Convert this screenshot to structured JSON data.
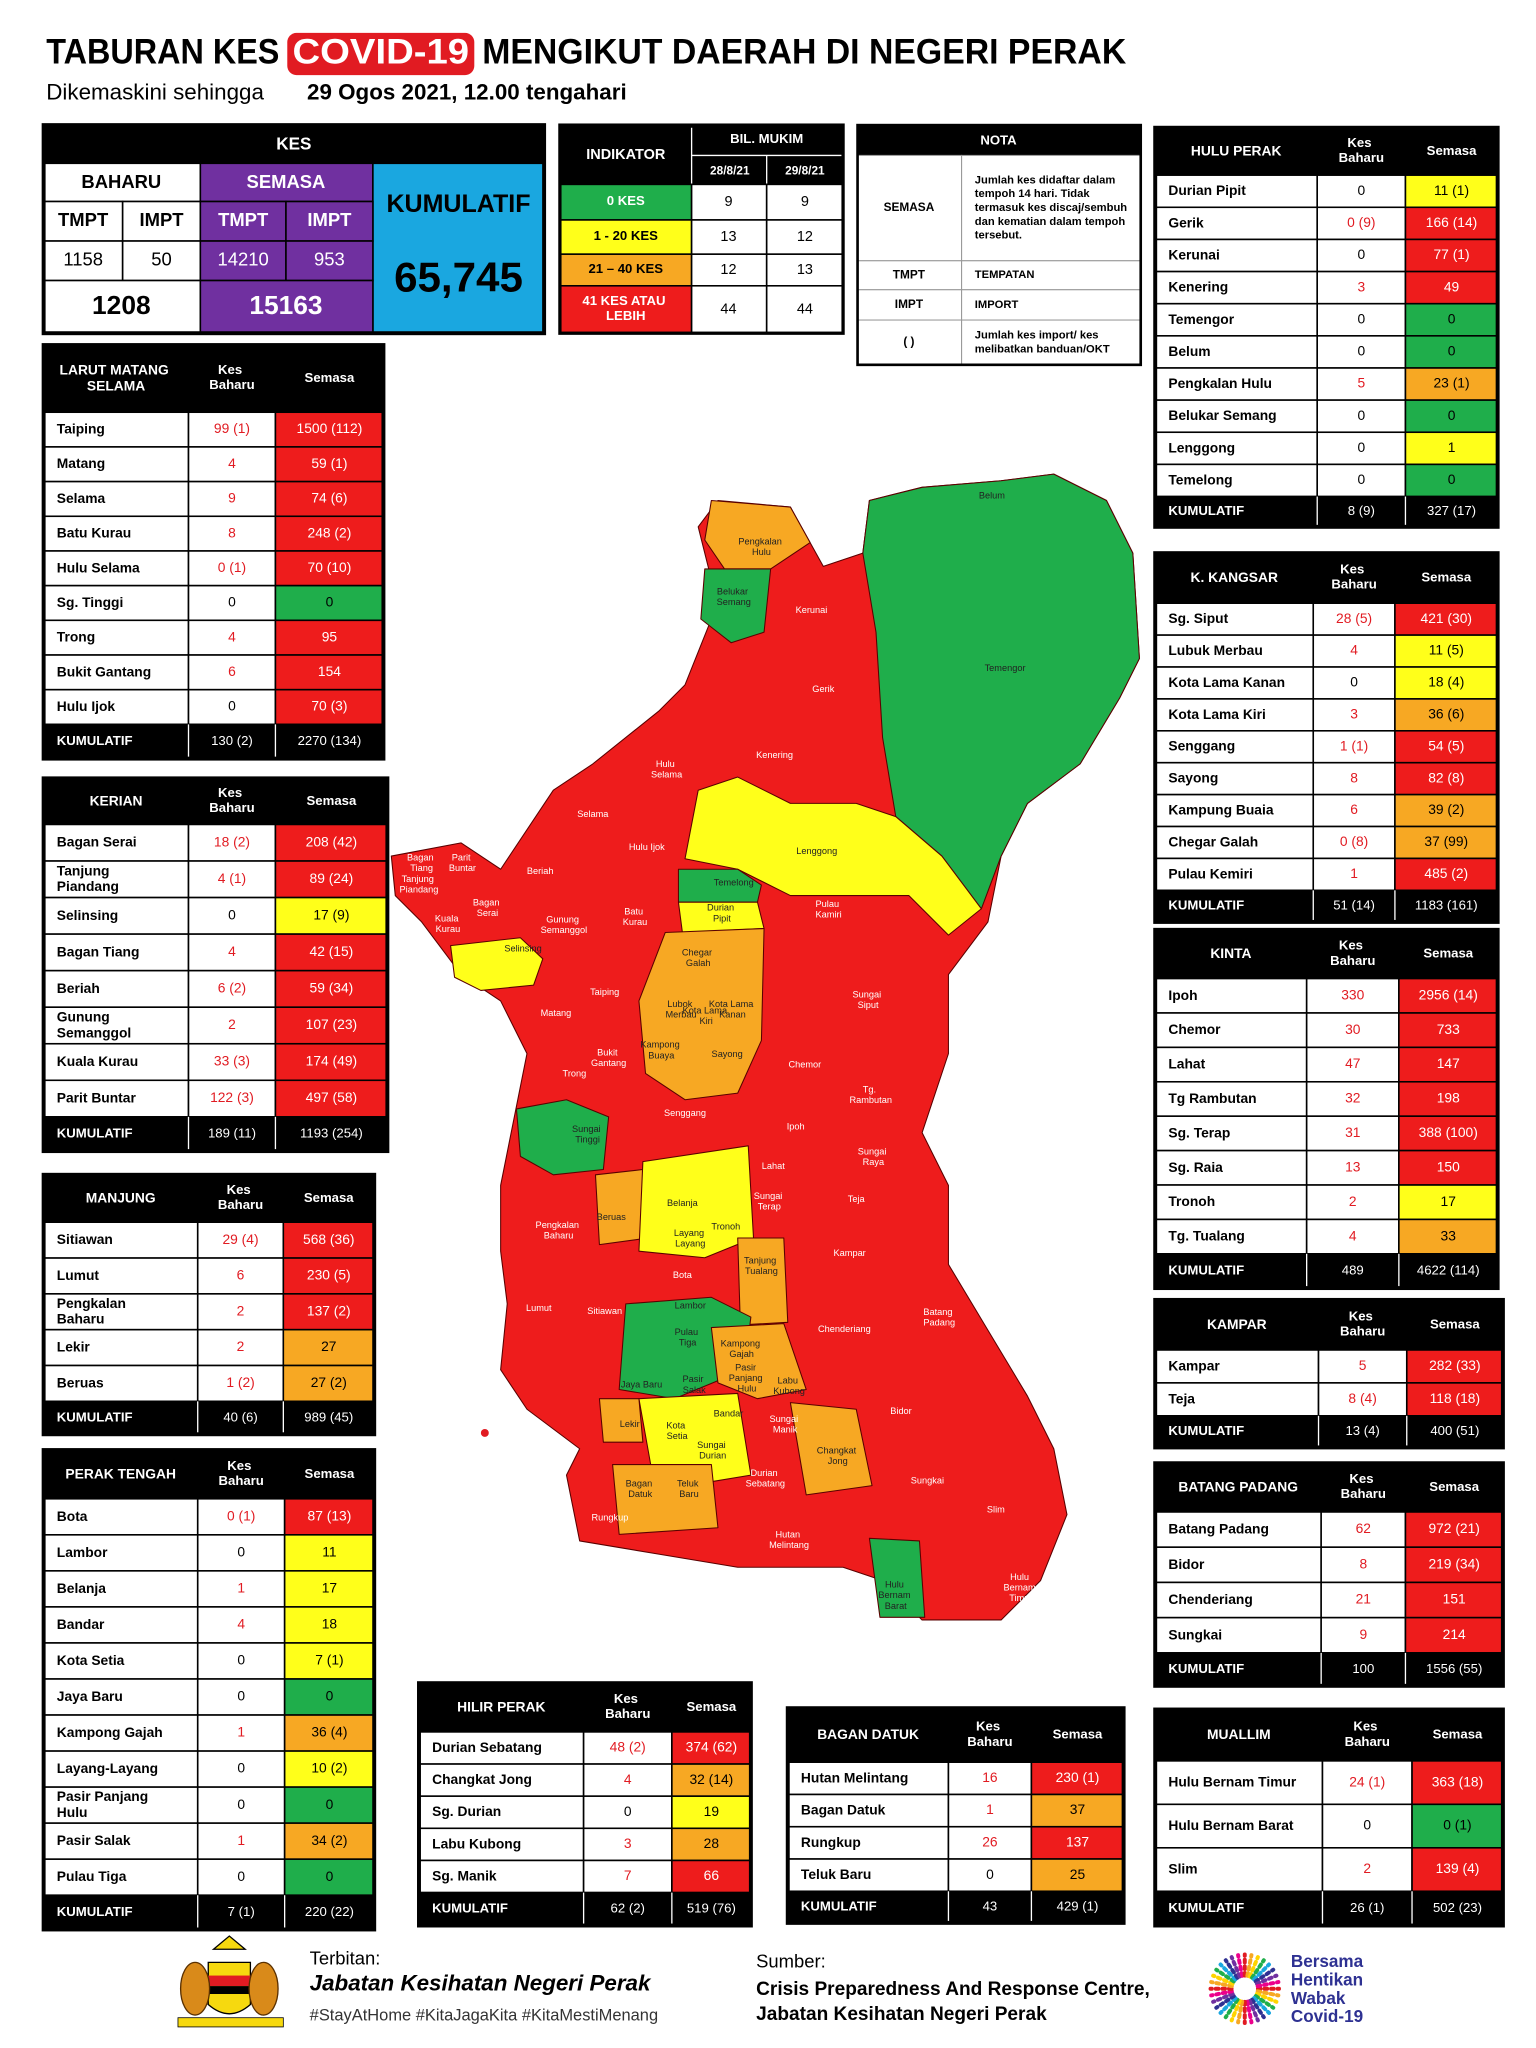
{
  "header": {
    "title_start": "TABURAN KES",
    "title_highlight": "COVID-19",
    "title_end": "MENGIKUT DAERAH DI NEGERI PERAK",
    "subtitle_start": "Dikemaskini sehingga",
    "subtitle_date": "29 Ogos 2021, 12.00 tengahari"
  },
  "kes": {
    "title": "KES",
    "baharu": "BAHARU",
    "semasa": "SEMASA",
    "kumulatif": "KUMULATIF",
    "sub": [
      "TMPT",
      "IMPT",
      "TMPT",
      "IMPT"
    ],
    "values": [
      "1158",
      "50",
      "14210",
      "953"
    ],
    "totals": [
      "1208",
      "15163"
    ],
    "kumulatif_value": "65,745"
  },
  "indikator": {
    "title": "INDIKATOR",
    "group": "BIL. MUKIM",
    "dates": [
      "28/8/21",
      "29/8/21"
    ],
    "rows": [
      [
        "0 KES",
        "9",
        "9"
      ],
      [
        "1 - 20 KES",
        "13",
        "12"
      ],
      [
        "21 – 40 KES",
        "12",
        "13"
      ],
      [
        "41 KES ATAU LEBIH",
        "44",
        "44"
      ]
    ]
  },
  "nota": {
    "title": "NOTA",
    "rows": [
      [
        "SEMASA",
        "Jumlah kes didaftar dalam tempoh 14 hari. Tidak termasuk kes discaj/sembuh dan kematian dalam tempoh tersebut."
      ],
      [
        "TMPT",
        "TEMPATAN"
      ],
      [
        "IMPT",
        "IMPORT"
      ],
      [
        "( )",
        "Jumlah kes import/ kes melibatkan banduan/OKT"
      ]
    ]
  },
  "districts": [
    {
      "name": "LARUT MATANG SELAMA",
      "col_baharu": "Kes Baharu",
      "col_semasa": "Semasa",
      "rows": [
        [
          "Taiping",
          "99 (1)",
          "1500 (112)"
        ],
        [
          "Matang",
          "4",
          "59 (1)"
        ],
        [
          "Selama",
          "9",
          "74 (6)"
        ],
        [
          "Batu Kurau",
          "8",
          "248 (2)"
        ],
        [
          "Hulu Selama",
          "0 (1)",
          "70 (10)"
        ],
        [
          "Sg. Tinggi",
          "0",
          "0"
        ],
        [
          "Trong",
          "4",
          "95"
        ],
        [
          "Bukit Gantang",
          "6",
          "154"
        ],
        [
          "Hulu Ijok",
          "0",
          "70 (3)"
        ]
      ],
      "total_label": "KUMULATIF",
      "total": [
        "130 (2)",
        "2270 (134)"
      ]
    },
    {
      "name": "KERIAN",
      "col_baharu": "Kes Baharu",
      "col_semasa": "Semasa",
      "rows": [
        [
          "Bagan Serai",
          "18 (2)",
          "208 (42)"
        ],
        [
          "Tanjung Piandang",
          "4 (1)",
          "89 (24)"
        ],
        [
          "Selinsing",
          "0",
          "17 (9)"
        ],
        [
          "Bagan Tiang",
          "4",
          "42 (15)"
        ],
        [
          "Beriah",
          "6 (2)",
          "59 (34)"
        ],
        [
          "Gunung Semanggol",
          "2",
          "107 (23)"
        ],
        [
          "Kuala Kurau",
          "33 (3)",
          "174 (49)"
        ],
        [
          "Parit Buntar",
          "122 (3)",
          "497 (58)"
        ]
      ],
      "total_label": "KUMULATIF",
      "total": [
        "189 (11)",
        "1193 (254)"
      ]
    },
    {
      "name": "MANJUNG",
      "col_baharu": "Kes Baharu",
      "col_semasa": "Semasa",
      "rows": [
        [
          "Sitiawan",
          "29 (4)",
          "568 (36)"
        ],
        [
          "Lumut",
          "6",
          "230 (5)"
        ],
        [
          "Pengkalan Baharu",
          "2",
          "137 (2)"
        ],
        [
          "Lekir",
          "2",
          "27"
        ],
        [
          "Beruas",
          "1 (2)",
          "27 (2)"
        ]
      ],
      "total_label": "KUMULATIF",
      "total": [
        "40 (6)",
        "989 (45)"
      ]
    },
    {
      "name": "PERAK TENGAH",
      "col_baharu": "Kes Baharu",
      "col_semasa": "Semasa",
      "rows": [
        [
          "Bota",
          "0 (1)",
          "87 (13)"
        ],
        [
          "Lambor",
          "0",
          "11"
        ],
        [
          "Belanja",
          "1",
          "17"
        ],
        [
          "Bandar",
          "4",
          "18"
        ],
        [
          "Kota Setia",
          "0",
          "7 (1)"
        ],
        [
          "Jaya Baru",
          "0",
          "0"
        ],
        [
          "Kampong Gajah",
          "1",
          "36 (4)"
        ],
        [
          "Layang-Layang",
          "0",
          "10 (2)"
        ],
        [
          "Pasir Panjang Hulu",
          "0",
          "0"
        ],
        [
          "Pasir Salak",
          "1",
          "34 (2)"
        ],
        [
          "Pulau Tiga",
          "0",
          "0"
        ]
      ],
      "total_label": "KUMULATIF",
      "total": [
        "7 (1)",
        "220 (22)"
      ]
    },
    {
      "name": "HULU PERAK",
      "col_baharu": "Kes Baharu",
      "col_semasa": "Semasa",
      "rows": [
        [
          "Durian Pipit",
          "0",
          "11 (1)"
        ],
        [
          "Gerik",
          "0 (9)",
          "166 (14)"
        ],
        [
          "Kerunai",
          "0",
          "77 (1)"
        ],
        [
          "Kenering",
          "3",
          "49"
        ],
        [
          "Temengor",
          "0",
          "0"
        ],
        [
          "Belum",
          "0",
          "0"
        ],
        [
          "Pengkalan Hulu",
          "5",
          "23 (1)"
        ],
        [
          "Belukar Semang",
          "0",
          "0"
        ],
        [
          "Lenggong",
          "0",
          "1"
        ],
        [
          "Temelong",
          "0",
          "0"
        ]
      ],
      "total_label": "KUMULATIF",
      "total": [
        "8 (9)",
        "327 (17)"
      ]
    },
    {
      "name": "K. KANGSAR",
      "col_baharu": "Kes Baharu",
      "col_semasa": "Semasa",
      "rows": [
        [
          "Sg. Siput",
          "28 (5)",
          "421 (30)"
        ],
        [
          "Lubuk Merbau",
          "4",
          "11 (5)"
        ],
        [
          "Kota Lama Kanan",
          "0",
          "18 (4)"
        ],
        [
          "Kota Lama Kiri",
          "3",
          "36 (6)"
        ],
        [
          "Senggang",
          "1 (1)",
          "54 (5)"
        ],
        [
          "Sayong",
          "8",
          "82 (8)"
        ],
        [
          "Kampung Buaia",
          "6",
          "39 (2)"
        ],
        [
          "Chegar Galah",
          "0 (8)",
          "37 (99)"
        ],
        [
          "Pulau Kemiri",
          "1",
          "485 (2)"
        ]
      ],
      "total_label": "KUMULATIF",
      "total": [
        "51 (14)",
        "1183 (161)"
      ]
    },
    {
      "name": "KINTA",
      "col_baharu": "Kes Baharu",
      "col_semasa": "Semasa",
      "rows": [
        [
          "Ipoh",
          "330",
          "2956 (14)"
        ],
        [
          "Chemor",
          "30",
          "733"
        ],
        [
          "Lahat",
          "47",
          "147"
        ],
        [
          "Tg Rambutan",
          "32",
          "198"
        ],
        [
          "Sg. Terap",
          "31",
          "388 (100)"
        ],
        [
          "Sg. Raia",
          "13",
          "150"
        ],
        [
          "Tronoh",
          "2",
          "17"
        ],
        [
          "Tg. Tualang",
          "4",
          "33"
        ]
      ],
      "total_label": "KUMULATIF",
      "total": [
        "489",
        "4622 (114)"
      ]
    },
    {
      "name": "KAMPAR",
      "col_baharu": "Kes Baharu",
      "col_semasa": "Semasa",
      "rows": [
        [
          "Kampar",
          "5",
          "282 (33)"
        ],
        [
          "Teja",
          "8 (4)",
          "118 (18)"
        ]
      ],
      "total_label": "KUMULATIF",
      "total": [
        "13 (4)",
        "400 (51)"
      ]
    },
    {
      "name": "BATANG PADANG",
      "col_baharu": "Kes Baharu",
      "col_semasa": "Semasa",
      "rows": [
        [
          "Batang Padang",
          "62",
          "972 (21)"
        ],
        [
          "Bidor",
          "8",
          "219 (34)"
        ],
        [
          "Chenderiang",
          "21",
          "151"
        ],
        [
          "Sungkai",
          "9",
          "214"
        ]
      ],
      "total_label": "KUMULATIF",
      "total": [
        "100",
        "1556 (55)"
      ]
    },
    {
      "name": "MUALLIM",
      "col_baharu": "Kes Baharu",
      "col_semasa": "Semasa",
      "rows": [
        [
          "Hulu Bernam Timur",
          "24 (1)",
          "363 (18)"
        ],
        [
          "Hulu Bernam Barat",
          "0",
          "0 (1)"
        ],
        [
          "Slim",
          "2",
          "139 (4)"
        ]
      ],
      "total_label": "KUMULATIF",
      "total": [
        "26 (1)",
        "502 (23)"
      ]
    },
    {
      "name": "HILIR PERAK",
      "col_baharu": "Kes Baharu",
      "col_semasa": "Semasa",
      "rows": [
        [
          "Durian Sebatang",
          "48 (2)",
          "374 (62)"
        ],
        [
          "Changkat Jong",
          "4",
          "32 (14)"
        ],
        [
          "Sg. Durian",
          "0",
          "19"
        ],
        [
          "Labu Kubong",
          "3",
          "28"
        ],
        [
          "Sg. Manik",
          "7",
          "66"
        ]
      ],
      "total_label": "KUMULATIF",
      "total": [
        "62 (2)",
        "519 (76)"
      ]
    },
    {
      "name": "BAGAN DATUK",
      "col_baharu": "Kes Baharu",
      "col_semasa": "Semasa",
      "rows": [
        [
          "Hutan Melintang",
          "16",
          "230 (1)"
        ],
        [
          "Bagan Datuk",
          "1",
          "37"
        ],
        [
          "Rungkup",
          "26",
          "137"
        ],
        [
          "Teluk Baru",
          "0",
          "25"
        ]
      ],
      "total_label": "KUMULATIF",
      "total": [
        "43",
        "429 (1)"
      ]
    }
  ],
  "map": {
    "labels": [
      "Belum",
      "Temengor",
      "Pengkalan Hulu",
      "Belukar Semang",
      "Kerunai",
      "Gerik",
      "Kenering",
      "Hulu Selama",
      "Selama",
      "Hulu Ijok",
      "Lenggong",
      "Temelong",
      "Durian Pipit",
      "Pulau Kamiri",
      "Bagan Tiang",
      "Parit Buntar",
      "Tanjung Piandang",
      "Beriah",
      "Bagan Serai",
      "Kuala Kurau",
      "Gunung Semanggol",
      "Batu Kurau",
      "Selinsing",
      "Chegar Galah",
      "Lubok Merbau",
      "Kota Lama Kiri",
      "Kota Lama Kanan",
      "Taiping",
      "Sungai Siput",
      "Matang",
      "Kampong Buaya",
      "Bukit Gantang",
      "Sayong",
      "Chemor",
      "Trong",
      "Tg. Rambutan",
      "Senggang",
      "Sungai Tinggi",
      "Ipoh",
      "Sungai Raya",
      "Lahat",
      "Belanja",
      "Sungai Terap",
      "Teja",
      "Beruas",
      "Pengkalan Baharu",
      "Tronoh",
      "Layang Layang",
      "Kampar",
      "Tanjung Tualang",
      "Bota",
      "Lumut",
      "Lambor",
      "Sitiawan",
      "Batang Padang",
      "Chenderiang",
      "Pulau Tiga",
      "Kampong Gajah",
      "Pasir Panjang Hulu",
      "Jaya Baru",
      "Pasir Salak",
      "Labu Kubong",
      "Bandar",
      "Bidor",
      "Sungai Manik",
      "Lekir",
      "Kota Setia",
      "Sungai Durian",
      "Changkat Jong",
      "Durian Sebatang",
      "Sungkai",
      "Bagan Datuk",
      "Teluk Baru",
      "Rungkup",
      "Slim",
      "Hutan Melintang",
      "Hulu Bernam Barat",
      "Hulu Bernam Timur"
    ]
  },
  "footer": {
    "published_label": "Terbitan:",
    "publisher": "Jabatan Kesihatan Negeri Perak",
    "hashtags": "#StayAtHome #KitaJagaKita #KitaMestiMenang",
    "source_label": "Sumber:",
    "source": [
      "Crisis Preparedness And Response Centre,",
      "Jabatan Kesihatan Negeri Perak"
    ],
    "campaign": [
      "Bersama",
      "Hentikan",
      "Wabak",
      "Covid-19"
    ]
  }
}
